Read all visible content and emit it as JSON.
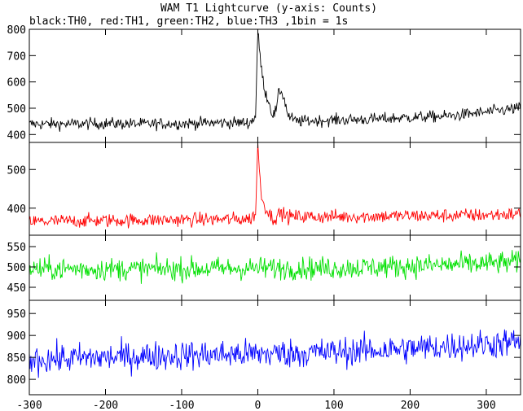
{
  "chart_data": {
    "type": "line",
    "title": "WAM T1 Lightcurve (y-axis: Counts)",
    "subtitle": "black:TH0, red:TH1, green:TH2, blue:TH3 ,1bin = 1s",
    "xlim": [
      -300,
      345
    ],
    "x_ticks": [
      -300,
      -200,
      -100,
      0,
      100,
      200,
      300
    ],
    "x_tick_labels": [
      "-300",
      "-200",
      "-100",
      "0",
      "100",
      "200",
      "300"
    ],
    "grid": false,
    "panels": [
      {
        "name": "TH0",
        "color": "#000000",
        "ylim": [
          370,
          800
        ],
        "y_ticks": [
          400,
          500,
          600,
          700,
          800
        ],
        "y_tick_labels": [
          "400",
          "500",
          "600",
          "700",
          "800"
        ],
        "series_points": [
          [
            -300,
            440
          ],
          [
            -250,
            440
          ],
          [
            -200,
            442
          ],
          [
            -150,
            440
          ],
          [
            -100,
            442
          ],
          [
            -50,
            445
          ],
          [
            -10,
            445
          ],
          [
            -3,
            470
          ],
          [
            0,
            790
          ],
          [
            3,
            700
          ],
          [
            6,
            620
          ],
          [
            10,
            560
          ],
          [
            15,
            520
          ],
          [
            20,
            470
          ],
          [
            25,
            500
          ],
          [
            28,
            570
          ],
          [
            32,
            560
          ],
          [
            36,
            520
          ],
          [
            40,
            470
          ],
          [
            50,
            450
          ],
          [
            100,
            455
          ],
          [
            150,
            458
          ],
          [
            200,
            465
          ],
          [
            250,
            470
          ],
          [
            300,
            485
          ],
          [
            343,
            500
          ]
        ],
        "noise": 20
      },
      {
        "name": "TH1",
        "color": "#ff0000",
        "ylim": [
          330,
          570
        ],
        "y_ticks": [
          400,
          500
        ],
        "y_tick_labels": [
          "400",
          "500"
        ],
        "series_points": [
          [
            -300,
            365
          ],
          [
            -200,
            368
          ],
          [
            -100,
            370
          ],
          [
            -10,
            372
          ],
          [
            -3,
            385
          ],
          [
            0,
            565
          ],
          [
            3,
            470
          ],
          [
            6,
            420
          ],
          [
            12,
            395
          ],
          [
            20,
            372
          ],
          [
            30,
            388
          ],
          [
            40,
            378
          ],
          [
            100,
            378
          ],
          [
            200,
            380
          ],
          [
            300,
            382
          ],
          [
            343,
            385
          ]
        ],
        "noise": 16
      },
      {
        "name": "TH2",
        "color": "#00e000",
        "ylim": [
          418,
          578
        ],
        "y_ticks": [
          450,
          500,
          550
        ],
        "y_tick_labels": [
          "450",
          "500",
          "550"
        ],
        "series_points": [
          [
            -300,
            495
          ],
          [
            -100,
            495
          ],
          [
            0,
            497
          ],
          [
            100,
            497
          ],
          [
            200,
            502
          ],
          [
            300,
            508
          ],
          [
            343,
            512
          ]
        ],
        "noise": 25
      },
      {
        "name": "TH3",
        "color": "#0000ff",
        "ylim": [
          765,
          980
        ],
        "y_ticks": [
          800,
          850,
          900,
          950
        ],
        "y_tick_labels": [
          "800",
          "850",
          "900",
          "950"
        ],
        "series_points": [
          [
            -300,
            845
          ],
          [
            -200,
            850
          ],
          [
            -100,
            855
          ],
          [
            0,
            858
          ],
          [
            100,
            862
          ],
          [
            200,
            870
          ],
          [
            300,
            880
          ],
          [
            343,
            885
          ]
        ],
        "noise": 30
      }
    ]
  }
}
